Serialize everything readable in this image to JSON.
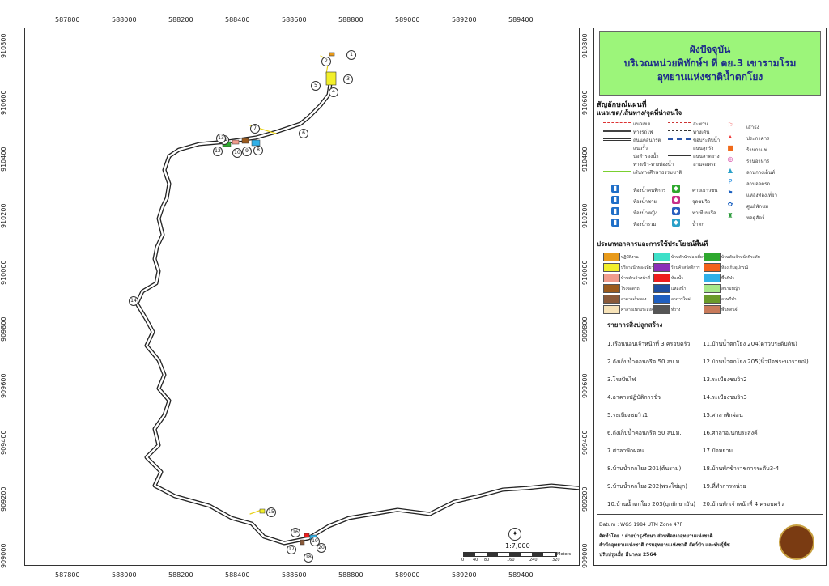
{
  "map": {
    "x_ticks": [
      "587800",
      "588000",
      "588200",
      "588400",
      "588600",
      "588800",
      "589000",
      "589200",
      "589400"
    ],
    "y_ticks": [
      "910800",
      "910600",
      "910400",
      "910200",
      "910000",
      "909800",
      "909600",
      "909400",
      "909200",
      "909000"
    ],
    "markers": [
      "1",
      "2",
      "3",
      "4",
      "5",
      "6",
      "7",
      "8",
      "9",
      "10",
      "11",
      "12",
      "13",
      "14",
      "15",
      "16",
      "17",
      "18",
      "19",
      "20"
    ]
  },
  "title": {
    "line1": "ผังปัจจุบัน",
    "line2": "บริเวณหน่วยพิทักษ์ฯ ที่ ตย.3 เขารามโรม",
    "line3": "อุทยานแห่งชาติน้ำตกโยง"
  },
  "legend": {
    "heading": "สัญลักษณ์แผนที่",
    "subheading": "แนวเขต/เส้นทาง/จุดที่น่าสนใจ",
    "lines_col1": [
      "แนวเขต",
      "ทางรถไฟ",
      "ถนนคอนกรีต",
      "แนวรั้ว",
      "บ่อสำรองน้ำ",
      "ทางเข้า-ทางท่องน้ำ",
      "เส้นทางศึกษาธรรมชาติ"
    ],
    "lines_col2": [
      "สะพาน",
      "ทางเดิน",
      "ขอบระดับน้ำ",
      "ถนนลูกรัง",
      "ถนนลาดยาง",
      "ลานจอดรถ"
    ],
    "points_col3": [
      "เสาธง",
      "ประภาคาร",
      "ร้านกาแฟ",
      "ร้านอาหาร",
      "ลานกางเต็นท์",
      "ลานจอดรถ",
      "แหล่งท่องเที่ยว",
      "ศูนย์พักชม",
      "หอดูสัตว์"
    ],
    "icons_col1": [
      "ห้องน้ำคนพิการ",
      "ห้องน้ำชาย",
      "ห้องน้ำหญิง",
      "ห้องน้ำรวม"
    ],
    "icons_col2": [
      "ค่ายเยาวชน",
      "จุดชมวิว",
      "ท่าเทียบเรือ",
      "น้ำตก"
    ],
    "landuse_heading": "ประเภทอาคารและการใช้ประโยชน์พื้นที่",
    "landuse": [
      {
        "label": "ปฏิบัติงาน",
        "color": "#e89a1a"
      },
      {
        "label": "บริการนักท่องเที่ยว",
        "color": "#f2ef2a"
      },
      {
        "label": "บ้านพักเจ้าหน้าที่",
        "color": "#f19b8c"
      },
      {
        "label": "โรงจอดรถ",
        "color": "#9b5a1c"
      },
      {
        "label": "อาคารเก็บของ",
        "color": "#8a5a3a"
      },
      {
        "label": "ศาลาอเนกประสงค์",
        "color": "#f7e3b8"
      },
      {
        "label": "บ้านพักนักท่องเที่ยว",
        "color": "#3ee0c8"
      },
      {
        "label": "ร้านค้าสวัสดิการ",
        "color": "#8b2fb8"
      },
      {
        "label": "ห้องน้ำ",
        "color": "#ee1c1c"
      },
      {
        "label": "แหล่งน้ำ",
        "color": "#1f4fa0"
      },
      {
        "label": "อาคารใหม่",
        "color": "#1f5fc0"
      },
      {
        "label": "ที่ว่าง",
        "color": "#555555"
      },
      {
        "label": "บ้านพักเจ้าหน้าที่ระดับ",
        "color": "#2ea82e"
      },
      {
        "label": "ห้องเก็บอุปกรณ์",
        "color": "#f2621a"
      },
      {
        "label": "พื้นที่ป่า",
        "color": "#2fb0e8"
      },
      {
        "label": "สนามหญ้า",
        "color": "#a6e88a"
      },
      {
        "label": "ลานกีฬา",
        "color": "#6a9a2a"
      },
      {
        "label": "พื้นที่ดินจี่",
        "color": "#c87a5a"
      }
    ]
  },
  "buildings": {
    "heading": "รายการสิ่งปลูกสร้าง",
    "left": [
      "1.เรือนนอนเจ้าหน้าที่ 3 ครอบครัว",
      "2.ถังเก็บน้ำคอนกรีต 50 ลบ.ม.",
      "3.โรงปั่นไฟ",
      "4.อาคารปฏิบัติการชั่ว",
      "5.ระเบียงชมวิว1",
      "6.ถังเก็บน้ำคอนกรีต 50 ลบ.ม.",
      "7.ศาลาพักผ่อน",
      "8.บ้านน้ำตกโยง 201(ต้นราม)",
      "9.บ้านน้ำตกโยง 202(พวงโซ่มุก)",
      "10.บ้านน้ำตกโยง 203(บุกยักษามัน)"
    ],
    "right": [
      "11.บ้านน้ำตกโยง 204(ดาวประดับดิน)",
      "12.บ้านน้ำตกโยง 205(นิ้วมือพระนารายณ์)",
      "13.ระเบียงชมวิว2",
      "14.ระเบียงชมวิว3",
      "15.ศาลาพักผ่อน",
      "16.ศาลาอเนกประสงค์",
      "17.ป้อมยาม",
      "18.บ้านพักข้าราชการระดับ3-4",
      "19.ที่ทำการหน่วย",
      "20.บ้านพักเจ้าหน้าที่ 4 ครอบครัว"
    ]
  },
  "footer": {
    "datum": "Datum  : WGS 1984 UTM Zone 47P",
    "made_by_1": "จัดทำโดย  : ฝ่ายบำรุงรักษา ส่วนพัฒนาอุทยานแห่งชาติ",
    "made_by_2": "สำนักอุทยานแห่งชาติ  กรมอุทยานแห่งชาติ สัตว์ป่า และพันธุ์พืช",
    "updated": "ปรับปรุงเมื่อ มีนาคม 2564",
    "scale": "1:7,000",
    "scale_ticks": [
      "0",
      "40",
      "80",
      "160",
      "240",
      "320"
    ],
    "scale_unit": "Meters"
  }
}
